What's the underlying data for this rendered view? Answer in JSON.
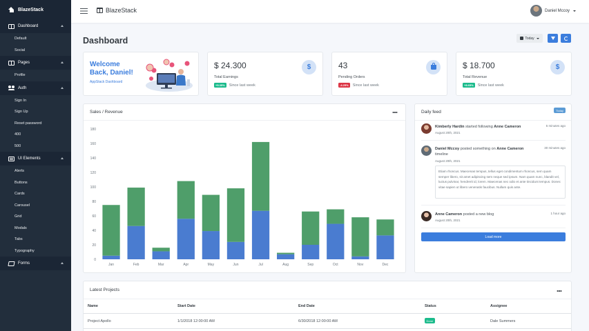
{
  "sidebar": {
    "brand": "BlazeStack",
    "sections": [
      {
        "label": "Dashboard",
        "icon": "grid-icon",
        "items": [
          "Default",
          "Social"
        ]
      },
      {
        "label": "Pages",
        "icon": "columns-icon",
        "items": [
          "Profile"
        ]
      },
      {
        "label": "Auth",
        "icon": "users-icon",
        "items": [
          "Sign In",
          "Sign Up",
          "Reset password",
          "400",
          "500"
        ]
      },
      {
        "label": "UI Elements",
        "icon": "list-icon",
        "items": [
          "Alerts",
          "Buttons",
          "Cards",
          "Carousel",
          "Grid",
          "Modals",
          "Tabs",
          "Typography"
        ]
      },
      {
        "label": "Forms",
        "icon": "edit-icon",
        "items": []
      }
    ]
  },
  "header": {
    "title": "BlazeStack",
    "user_name": "Daniel Mccoy"
  },
  "page": {
    "title": "Dashboard",
    "date_filter": "Today"
  },
  "welcome": {
    "title_line1": "Welcome",
    "title_line2": "Back, Daniel!",
    "subtitle": "AppStack Dashboard"
  },
  "stats": [
    {
      "value": "$ 24.300",
      "label": "Total Earnings",
      "change": "+5.35%",
      "change_color": "#1cbb8c",
      "since": "Since last week",
      "icon": "dollar-icon"
    },
    {
      "value": "43",
      "label": "Pending Orders",
      "change": "-4.25%",
      "change_color": "#dc3545",
      "since": "Since last week",
      "icon": "shopping-bag-icon"
    },
    {
      "value": "$ 18.700",
      "label": "Total Revenue",
      "change": "+8.65%",
      "change_color": "#1cbb8c",
      "since": "Since last week",
      "icon": "dollar-icon"
    }
  ],
  "sales_card": {
    "title": "Sales / Revenue"
  },
  "chart_data": {
    "type": "bar",
    "stacked": true,
    "categories": [
      "Jan",
      "Feb",
      "Mar",
      "Apr",
      "May",
      "Jun",
      "Jul",
      "Aug",
      "Sep",
      "Oct",
      "Nov",
      "Dec"
    ],
    "series": [
      {
        "values": [
          5,
          46,
          11,
          56,
          39,
          24,
          67,
          7,
          20,
          49,
          4,
          33
        ],
        "color": "#4a7cd0"
      },
      {
        "values": [
          70,
          53,
          5,
          52,
          50,
          74,
          95,
          2,
          46,
          20,
          54,
          22
        ],
        "color": "#4f9e6a"
      }
    ],
    "ylim": [
      0,
      180
    ],
    "yticks": [
      0,
      20,
      40,
      60,
      80,
      100,
      120,
      140,
      160,
      180
    ],
    "grid": false,
    "xlabel": "",
    "ylabel": ""
  },
  "feed": {
    "title": "Daily feed",
    "badge": "Today",
    "items": [
      {
        "name": "Kimberly Hardin",
        "action": "started following",
        "target": "Anne Cameron",
        "suffix": "",
        "date": "August 20th, 2021",
        "time": "5 minutes ago"
      },
      {
        "name": "Daniel Mccoy",
        "action": "posted something on",
        "target": "Anne Cameron",
        "suffix": "timeline",
        "date": "August 20th, 2021",
        "time": "30 minutes ago",
        "quote": "Etiam rhoncus. Maecenas tempus, tellus eget condimentum rhoncus, sem quam semper libero, sit amet adipiscing sem neque sed ipsum. Nam quam nunc, blandit vel, luctus pulvinar, hendrerit id, lorem. Maecenas nec odio et ante tincidunt tempus. Donec vitae sapien ut libero venenatis faucibus. Nullam quis ante."
      },
      {
        "name": "Anne Cameron",
        "action": "posted a new blog",
        "target": "",
        "suffix": "",
        "date": "August 20th, 2021",
        "time": "1 hour ago"
      }
    ],
    "load_more": "Load more"
  },
  "projects": {
    "title": "Latest Projects",
    "columns": [
      "Name",
      "Start Date",
      "End Date",
      "Status",
      "Assignee"
    ],
    "rows": [
      {
        "name": "Project Apollo",
        "start": "1/1/2018 12:00:00 AM",
        "end": "6/30/2018 12:00:00 AM",
        "status": "Done",
        "assignee": "Dale Summers"
      }
    ]
  }
}
